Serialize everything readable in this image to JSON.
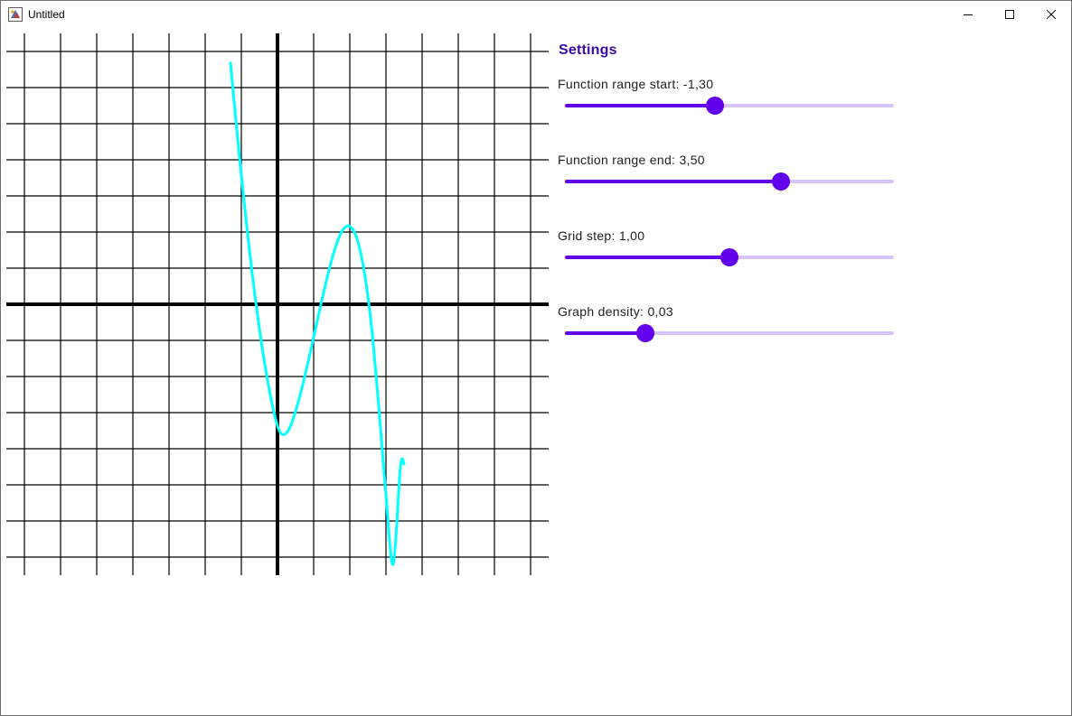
{
  "window": {
    "title": "Untitled",
    "icon": "java-app-icon",
    "controls": [
      "minimize-icon",
      "maximize-icon",
      "close-icon"
    ]
  },
  "chart_data": {
    "type": "line",
    "title": "",
    "xlabel": "",
    "ylabel": "",
    "xlim": [
      -7.5,
      7.5
    ],
    "ylim": [
      -7.5,
      7.5
    ],
    "grid": true,
    "grid_step": 1,
    "axes_color": "#000000",
    "grid_color": "#000000",
    "series": [
      {
        "color": "#00ffff",
        "x": [
          -1.3,
          -1.2,
          -1.1,
          -1.0,
          -0.9,
          -0.8,
          -0.7,
          -0.6,
          -0.5,
          -0.4,
          -0.3,
          -0.2,
          -0.1,
          0.0,
          0.1,
          0.2,
          0.3,
          0.4,
          0.5,
          0.6,
          0.7,
          0.8,
          0.9,
          1.0,
          1.2,
          1.4,
          1.6,
          1.8,
          2.0,
          2.2,
          2.4,
          2.6,
          2.8,
          3.0,
          3.2,
          3.4,
          3.5
        ],
        "y": [
          6.68,
          5.62,
          4.57,
          3.58,
          2.62,
          1.71,
          0.85,
          0.06,
          -0.68,
          -1.36,
          -1.97,
          -2.51,
          -2.98,
          -3.37,
          -3.58,
          -3.6,
          -3.49,
          -3.27,
          -2.97,
          -2.61,
          -2.22,
          -1.8,
          -1.36,
          -0.91,
          -0.01,
          0.85,
          1.57,
          2.05,
          2.16,
          1.81,
          0.9,
          -0.62,
          -2.82,
          -5.28,
          -7.2,
          -4.5,
          -4.42
        ]
      }
    ]
  },
  "settings": {
    "title": "Settings",
    "colors": {
      "accent": "#6200ee",
      "track": "#d6c4ff",
      "title": "#3a0ca3"
    },
    "items": [
      {
        "label": "Function range start:",
        "value": "-1,30",
        "fraction": 0.457
      },
      {
        "label": "Function range end:",
        "value": "3,50",
        "fraction": 0.657
      },
      {
        "label": "Grid step:",
        "value": "1,00",
        "fraction": 0.499
      },
      {
        "label": "Graph density:",
        "value": "0,03",
        "fraction": 0.244
      }
    ]
  }
}
